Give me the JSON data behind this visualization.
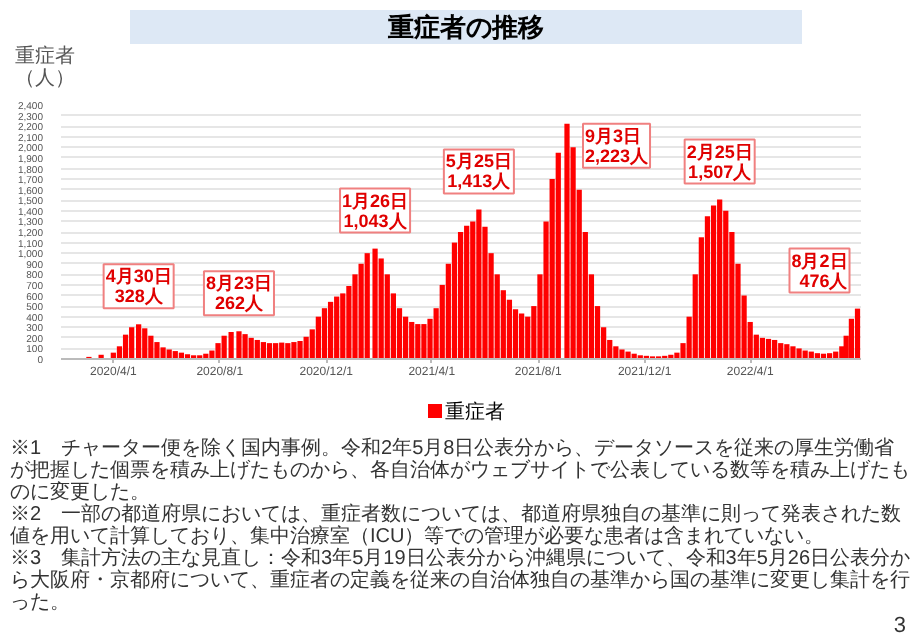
{
  "chart_data": {
    "type": "bar",
    "title": "重症者の推移",
    "ylabel": "重症者（人）",
    "x": [
      "2020-02-05",
      "2020-02-19",
      "2020-03-04",
      "2020-03-18",
      "2020-04-01",
      "2020-04-08",
      "2020-04-15",
      "2020-04-22",
      "2020-04-30",
      "2020-05-07",
      "2020-05-14",
      "2020-05-21",
      "2020-05-28",
      "2020-06-04",
      "2020-06-11",
      "2020-06-18",
      "2020-06-25",
      "2020-07-02",
      "2020-07-09",
      "2020-07-16",
      "2020-07-23",
      "2020-07-30",
      "2020-08-06",
      "2020-08-14",
      "2020-08-23",
      "2020-08-30",
      "2020-09-06",
      "2020-09-13",
      "2020-09-20",
      "2020-09-27",
      "2020-10-04",
      "2020-10-11",
      "2020-10-18",
      "2020-10-25",
      "2020-11-01",
      "2020-11-08",
      "2020-11-15",
      "2020-11-22",
      "2020-11-29",
      "2020-12-06",
      "2020-12-13",
      "2020-12-20",
      "2020-12-27",
      "2021-01-03",
      "2021-01-10",
      "2021-01-17",
      "2021-01-26",
      "2021-02-02",
      "2021-02-09",
      "2021-02-16",
      "2021-02-23",
      "2021-03-02",
      "2021-03-09",
      "2021-03-16",
      "2021-03-23",
      "2021-03-30",
      "2021-04-06",
      "2021-04-13",
      "2021-04-20",
      "2021-04-27",
      "2021-05-04",
      "2021-05-11",
      "2021-05-18",
      "2021-05-25",
      "2021-06-01",
      "2021-06-08",
      "2021-06-15",
      "2021-06-22",
      "2021-06-29",
      "2021-07-06",
      "2021-07-13",
      "2021-07-20",
      "2021-07-27",
      "2021-08-03",
      "2021-08-10",
      "2021-08-17",
      "2021-08-24",
      "2021-09-03",
      "2021-09-10",
      "2021-09-17",
      "2021-09-24",
      "2021-10-01",
      "2021-10-08",
      "2021-10-15",
      "2021-10-22",
      "2021-10-29",
      "2021-11-05",
      "2021-11-12",
      "2021-11-19",
      "2021-11-26",
      "2021-12-03",
      "2021-12-10",
      "2021-12-17",
      "2021-12-24",
      "2021-12-31",
      "2022-01-07",
      "2022-01-14",
      "2022-01-21",
      "2022-01-28",
      "2022-02-04",
      "2022-02-11",
      "2022-02-18",
      "2022-02-25",
      "2022-03-04",
      "2022-03-11",
      "2022-03-18",
      "2022-03-25",
      "2022-04-01",
      "2022-04-08",
      "2022-04-15",
      "2022-04-22",
      "2022-04-29",
      "2022-05-06",
      "2022-05-13",
      "2022-05-20",
      "2022-05-27",
      "2022-06-03",
      "2022-06-10",
      "2022-06-17",
      "2022-06-24",
      "2022-07-01",
      "2022-07-08",
      "2022-07-15",
      "2022-07-20",
      "2022-07-26",
      "2022-08-02"
    ],
    "series": [
      {
        "name": "重症者",
        "color": "#ff0000",
        "values": [
          0,
          5,
          20,
          40,
          60,
          120,
          230,
          300,
          328,
          290,
          220,
          160,
          110,
          90,
          75,
          60,
          45,
          35,
          35,
          50,
          80,
          150,
          220,
          255,
          262,
          235,
          200,
          180,
          160,
          150,
          150,
          155,
          150,
          160,
          170,
          210,
          280,
          400,
          480,
          540,
          590,
          620,
          690,
          800,
          900,
          1000,
          1043,
          950,
          800,
          620,
          480,
          400,
          350,
          330,
          330,
          380,
          480,
          700,
          900,
          1100,
          1200,
          1260,
          1300,
          1413,
          1250,
          1000,
          800,
          650,
          560,
          470,
          430,
          400,
          500,
          800,
          1300,
          1700,
          1950,
          2223,
          2000,
          1600,
          1200,
          800,
          500,
          300,
          180,
          120,
          90,
          70,
          50,
          35,
          30,
          25,
          25,
          30,
          40,
          60,
          150,
          400,
          800,
          1150,
          1350,
          1450,
          1507,
          1400,
          1200,
          900,
          600,
          350,
          230,
          200,
          190,
          180,
          150,
          140,
          120,
          100,
          80,
          70,
          55,
          50,
          55,
          70,
          120,
          220,
          380,
          476
        ]
      }
    ],
    "xlim": [
      "2020-02-01",
      "2022-08-06"
    ],
    "ylim": [
      0,
      2400
    ],
    "yticks": [
      {
        "value": 0,
        "label": "0"
      },
      {
        "value": 100,
        "label": "100"
      },
      {
        "value": 200,
        "label": "200"
      },
      {
        "value": 300,
        "label": "300"
      },
      {
        "value": 400,
        "label": "400"
      },
      {
        "value": 500,
        "label": "500"
      },
      {
        "value": 600,
        "label": "600"
      },
      {
        "value": 700,
        "label": "700"
      },
      {
        "value": 800,
        "label": "800"
      },
      {
        "value": 900,
        "label": "900"
      },
      {
        "value": 1000,
        "label": "1,000"
      },
      {
        "value": 1100,
        "label": "1,100"
      },
      {
        "value": 1200,
        "label": "1,200"
      },
      {
        "value": 1300,
        "label": "1,300"
      },
      {
        "value": 1400,
        "label": "1,400"
      },
      {
        "value": 1500,
        "label": "1,500"
      },
      {
        "value": 1600,
        "label": "1,600"
      },
      {
        "value": 1700,
        "label": "1,700"
      },
      {
        "value": 1800,
        "label": "1,800"
      },
      {
        "value": 1900,
        "label": "1,900"
      },
      {
        "value": 2000,
        "label": "2,000"
      },
      {
        "value": 2100,
        "label": "2,100"
      },
      {
        "value": 2200,
        "label": "2,200"
      },
      {
        "value": 2300,
        "label": "2,300"
      },
      {
        "value": 2400,
        "label": "2,400"
      }
    ],
    "xticks": [
      {
        "value": "2020-04-01",
        "label": "2020/4/1"
      },
      {
        "value": "2020-08-01",
        "label": "2020/8/1"
      },
      {
        "value": "2020-12-01",
        "label": "2020/12/1"
      },
      {
        "value": "2021-04-01",
        "label": "2021/4/1"
      },
      {
        "value": "2021-08-01",
        "label": "2021/8/1"
      },
      {
        "value": "2021-12-01",
        "label": "2021/12/1"
      },
      {
        "value": "2022-04-01",
        "label": "2022/4/1"
      }
    ],
    "grid": "y",
    "legend": "bottom",
    "annotations": [
      {
        "text": "4月30日\n328人",
        "x": "2020-04-30",
        "y": 328
      },
      {
        "text": "8月23日\n262人",
        "x": "2020-08-23",
        "y": 262
      },
      {
        "text": "1月26日\n1,043人",
        "x": "2021-01-26",
        "y": 1043
      },
      {
        "text": "5月25日\n1,413人",
        "x": "2021-05-25",
        "y": 1413
      },
      {
        "text": "9月3日\n2,223人",
        "x": "2021-09-03",
        "y": 2223
      },
      {
        "text": "2月25日\n1,507人",
        "x": "2022-02-25",
        "y": 1507
      },
      {
        "text": "8月2日\n476人",
        "x": "2022-08-02",
        "y": 476
      },
      "※1　チャーター便を除く国内事例。令和2年5月8日公表分から、データソースを従来の厚生労働省が把握した個票を積み上げたものから、各自治体がウェブサイトで公表している数等を積み上げたものに変更した。",
      "※2　一部の都道府県においては、重症者数については、都道府県独自の基準に則って発表された数値を用いて計算しており、集中治療室（ICU）等での管理が必要な患者は含まれていない。",
      "※3　集計方法の主な見直し：令和3年5月19日公表分から沖縄県について、令和3年5月26日公表分から大阪府・京都府について、重症者の定義を従来の自治体独自の基準から国の基準に変更し集計を行った。",
      "3"
    ]
  }
}
